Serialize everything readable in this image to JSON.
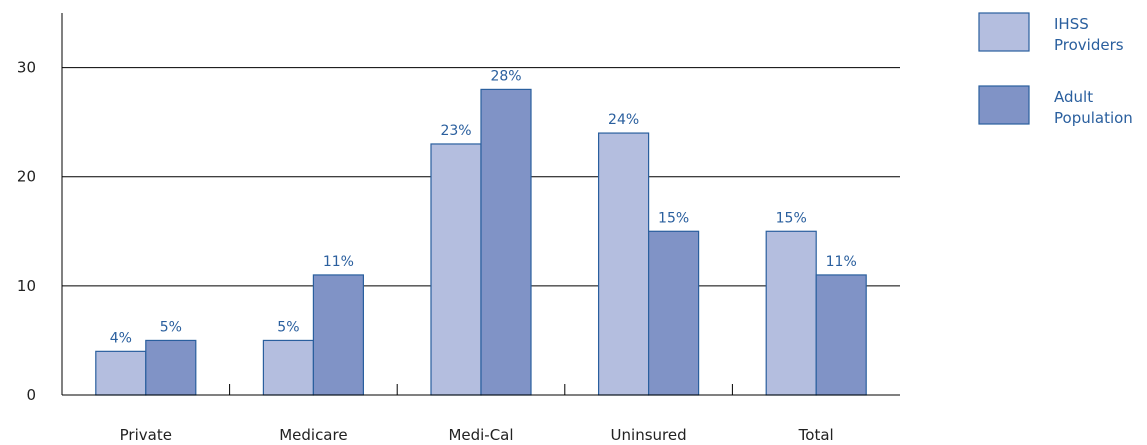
{
  "chart_data": {
    "type": "bar",
    "categories": [
      "Private",
      "Medicare",
      "Medi-Cal",
      "Uninsured",
      "Total"
    ],
    "series": [
      {
        "name": "IHSS Providers",
        "legend_lines": [
          "IHSS",
          "Providers"
        ],
        "color": "#b4bedf",
        "values": [
          4,
          5,
          23,
          24,
          15
        ],
        "labels": [
          "4%",
          "5%",
          "23%",
          "24%",
          "15%"
        ]
      },
      {
        "name": "Adult Population",
        "legend_lines": [
          "Adult",
          "Population"
        ],
        "color": "#8093c6",
        "values": [
          5,
          11,
          28,
          15,
          11
        ],
        "labels": [
          "5%",
          "11%",
          "28%",
          "15%",
          "11%"
        ]
      }
    ],
    "yticks": [
      0,
      10,
      20,
      30
    ],
    "ylim": [
      0,
      35
    ],
    "grid": true,
    "legend_position": "right",
    "title": "",
    "xlabel": "",
    "ylabel": ""
  }
}
